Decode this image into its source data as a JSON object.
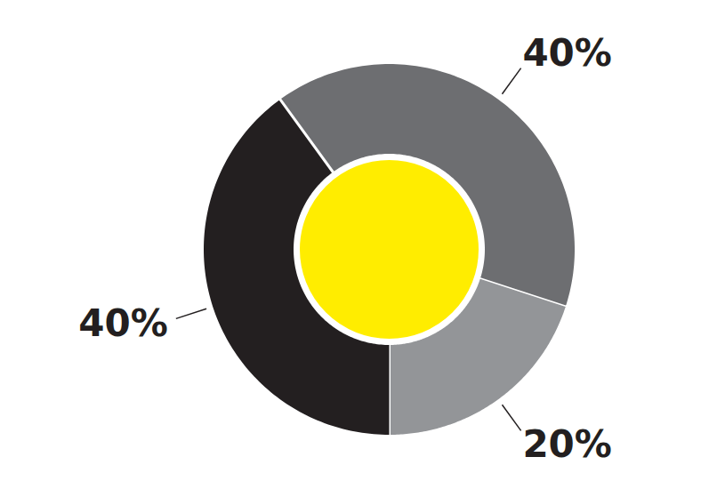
{
  "chart_data": {
    "type": "pie",
    "values": [
      40,
      20,
      40
    ],
    "value_labels": [
      "40%",
      "20%",
      "40%"
    ],
    "colors": [
      "#6d6e71",
      "#939598",
      "#231f20"
    ],
    "data_labels": true
  }
}
